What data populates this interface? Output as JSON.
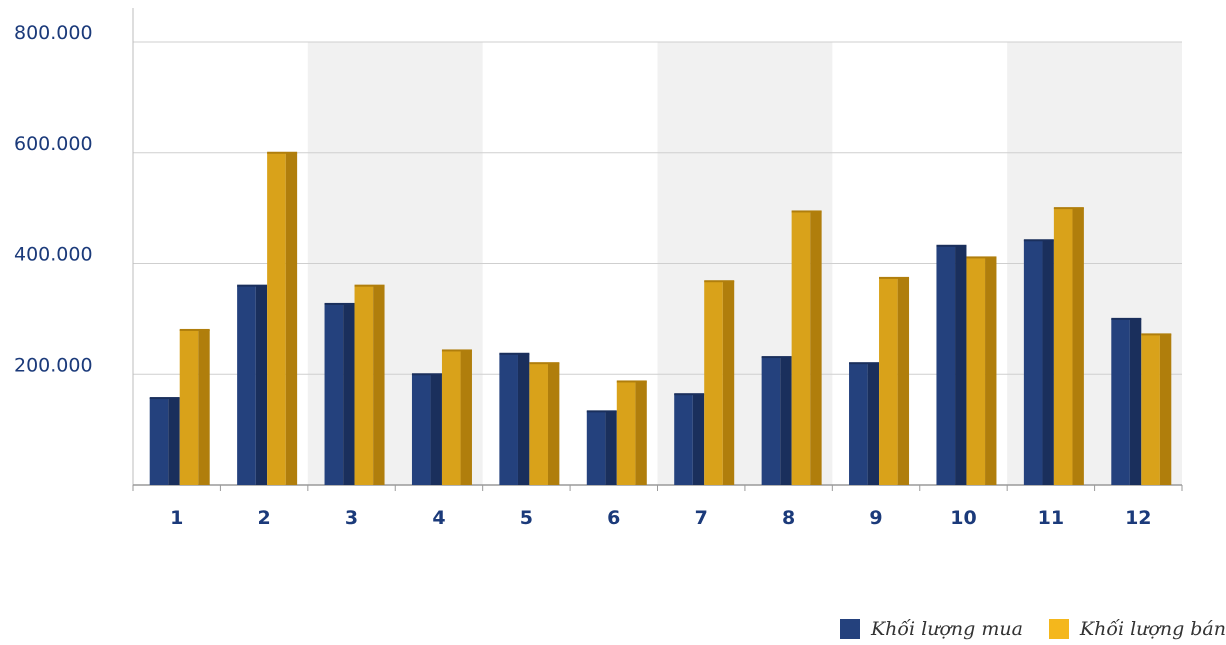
{
  "chart_data": {
    "type": "bar",
    "categories": [
      "1",
      "2",
      "3",
      "4",
      "5",
      "6",
      "7",
      "8",
      "9",
      "10",
      "11",
      "12"
    ],
    "series": [
      {
        "name": "Khối lượng mua",
        "color": "#24417d",
        "values": [
          157000,
          360000,
          327000,
          200000,
          237000,
          133000,
          164000,
          231000,
          220000,
          432000,
          442000,
          300000
        ]
      },
      {
        "name": "Khối lượng bán",
        "color": "#d9a21a",
        "values": [
          280000,
          600000,
          360000,
          243000,
          220000,
          187000,
          368000,
          494000,
          374000,
          411000,
          500000,
          272000
        ]
      }
    ],
    "yticks": [
      "200.000",
      "400.000",
      "600.000",
      "800.000"
    ],
    "ytick_values": [
      200000,
      400000,
      600000,
      800000
    ],
    "ylim": [
      0,
      800000
    ],
    "grid": true,
    "legend_position": "bottom-right",
    "xlabel": "",
    "ylabel": ""
  }
}
